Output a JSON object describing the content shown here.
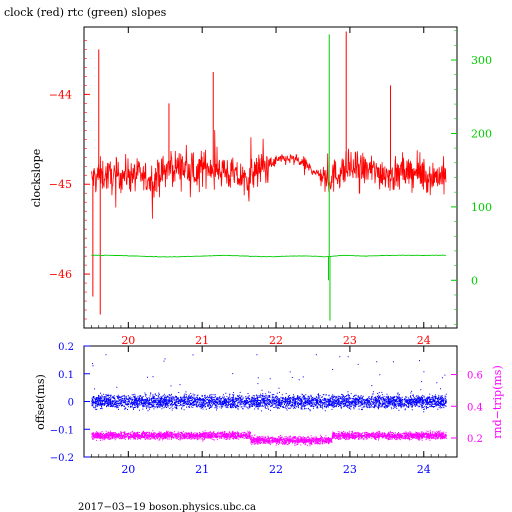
{
  "colors": {
    "red": "#ff0000",
    "green": "#00cc00",
    "blue": "#0000ff",
    "magenta": "#ff00ff",
    "black": "#000000"
  },
  "chart_data": [
    {
      "type": "line",
      "title": "clock (red) rtc (green) slopes",
      "xlabel": "",
      "ylabel": "clockslope",
      "xlim": [
        19.4,
        24.45
      ],
      "ylim": [
        -46.6,
        -43.25
      ],
      "x_ticks": [
        20,
        21,
        22,
        23,
        24
      ],
      "y_left_ticks": [
        -44,
        -45,
        -46
      ],
      "y_right_label": "",
      "y_right_ticks": [
        300,
        200,
        100,
        0
      ],
      "y_right_lim": [
        -65,
        345
      ],
      "grid": false,
      "series": [
        {
          "axis": "left",
          "color": "red",
          "x": [
            19.5,
            19.6,
            19.7,
            19.8,
            19.9,
            20.0,
            20.1,
            20.2,
            20.3,
            20.4,
            20.5,
            20.6,
            20.7,
            20.8,
            20.9,
            21.0,
            21.1,
            21.2,
            21.3,
            21.4,
            21.5,
            21.6,
            21.7,
            21.8,
            21.9,
            22.0,
            22.1,
            22.2,
            22.3,
            22.4,
            22.5,
            22.6,
            22.7,
            22.8,
            22.9,
            23.0,
            23.1,
            23.2,
            23.3,
            23.4,
            23.5,
            23.6,
            23.7,
            23.8,
            23.9,
            24.0,
            24.1,
            24.2,
            24.3
          ],
          "y": [
            -44.95,
            -44.9,
            -44.9,
            -44.92,
            -44.9,
            -44.88,
            -44.9,
            -44.92,
            -44.95,
            -44.92,
            -44.85,
            -44.82,
            -44.8,
            -44.85,
            -44.88,
            -44.82,
            -44.8,
            -44.82,
            -44.85,
            -44.9,
            -44.92,
            -44.95,
            -44.88,
            -44.82,
            -44.78,
            -44.74,
            -44.72,
            -44.72,
            -44.74,
            -44.78,
            -44.85,
            -44.9,
            -44.95,
            -44.9,
            -44.85,
            -44.83,
            -44.82,
            -44.84,
            -44.85,
            -44.87,
            -44.88,
            -44.9,
            -44.88,
            -44.86,
            -44.88,
            -44.9,
            -44.92,
            -44.9,
            -44.9
          ],
          "spikes": [
            {
              "x": 19.52,
              "y": -46.25
            },
            {
              "x": 19.6,
              "y": -43.5
            },
            {
              "x": 19.62,
              "y": -46.45
            },
            {
              "x": 20.55,
              "y": -44.1
            },
            {
              "x": 21.15,
              "y": -43.75
            },
            {
              "x": 23.55,
              "y": -43.9
            },
            {
              "x": 22.95,
              "y": -43.3
            }
          ]
        },
        {
          "axis": "right",
          "color": "green",
          "x": [
            19.5,
            19.8,
            20.1,
            20.4,
            20.7,
            21.0,
            21.3,
            21.6,
            21.9,
            22.2,
            22.5,
            22.7,
            22.9,
            23.2,
            23.5,
            23.8,
            24.1,
            24.3
          ],
          "y": [
            34,
            34,
            33,
            32,
            32,
            33,
            34,
            33,
            32,
            33,
            33,
            32,
            34,
            33,
            34,
            34,
            34,
            34
          ],
          "spikes": [
            {
              "x": 22.72,
              "y": 335
            },
            {
              "x": 22.73,
              "y": -55
            },
            {
              "x": 22.71,
              "y": 0
            }
          ]
        }
      ]
    },
    {
      "type": "scatter",
      "title": "",
      "xlabel": "",
      "ylabel": "offset(ms)",
      "y_right_label": "rnd−trip(ms)",
      "xlim": [
        19.4,
        24.45
      ],
      "ylim": [
        -0.2,
        0.2
      ],
      "x_ticks": [
        20,
        21,
        22,
        23,
        24
      ],
      "y_left_ticks": [
        0.2,
        0.1,
        0,
        -0.1,
        -0.2
      ],
      "y_right_ticks": [
        0.6,
        0.4,
        0.2
      ],
      "y_right_lim": [
        0.08,
        0.78
      ],
      "grid": false,
      "series": [
        {
          "axis": "left",
          "color": "blue",
          "center": 0.0,
          "spread": 0.035
        },
        {
          "axis": "right",
          "color": "magenta",
          "center": 0.215,
          "spread": 0.035
        }
      ]
    }
  ],
  "footer": "2017−03−19  boson.physics.ubc.ca"
}
